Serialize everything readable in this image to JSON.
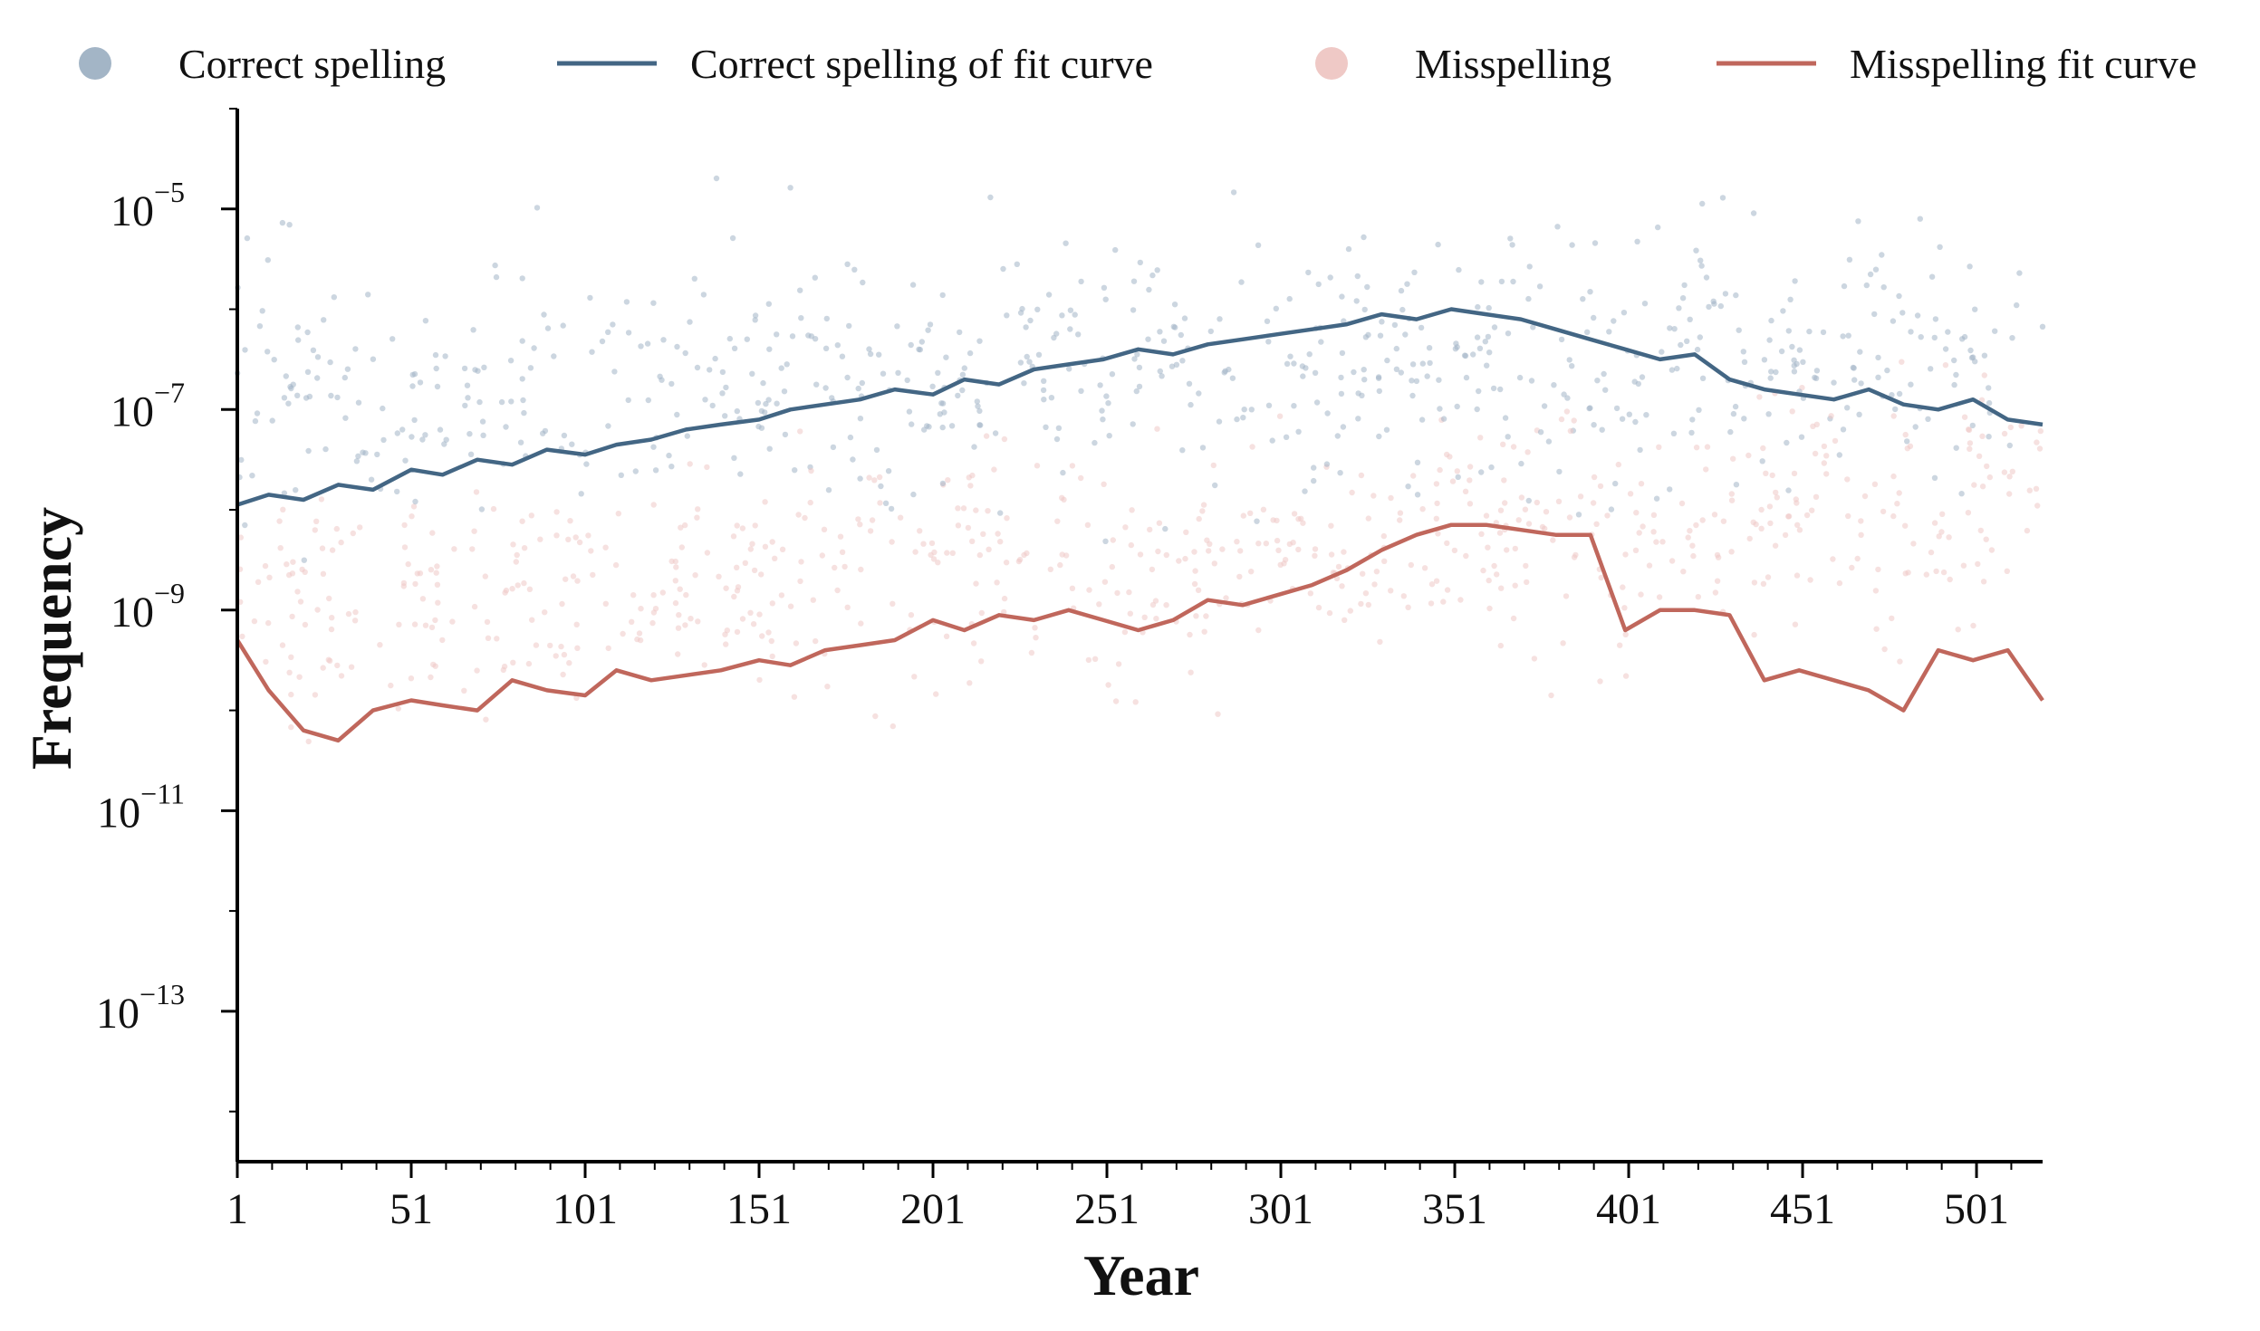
{
  "chart_data": {
    "type": "line",
    "xlabel": "Year",
    "ylabel": "Frequency",
    "xlim": [
      1,
      520
    ],
    "ylim_log10": [
      -14.5,
      -4.0
    ],
    "y_scale": "log",
    "grid": false,
    "legend_placement": "top",
    "x_ticks": [
      1,
      51,
      101,
      151,
      201,
      251,
      301,
      351,
      401,
      451,
      501
    ],
    "x_tick_labels": [
      "1",
      "51",
      "101",
      "151",
      "201",
      "251",
      "301",
      "351",
      "401",
      "451",
      "501"
    ],
    "y_ticks_log10": [
      -5,
      -7,
      -9,
      -11,
      -13
    ],
    "y_tick_labels": [
      {
        "base": "10",
        "exp": "−5"
      },
      {
        "base": "10",
        "exp": "−7"
      },
      {
        "base": "10",
        "exp": "−9"
      },
      {
        "base": "10",
        "exp": "−11"
      },
      {
        "base": "10",
        "exp": "−13"
      }
    ],
    "legend": [
      {
        "label": "Correct spelling",
        "kind": "marker",
        "color": "#a3b5c6"
      },
      {
        "label": "Correct spelling of fit curve",
        "kind": "line",
        "color": "#436684"
      },
      {
        "label": "Misspelling",
        "kind": "marker",
        "color": "#efc9c6"
      },
      {
        "label": "Misspelling fit curve",
        "kind": "line",
        "color": "#c0675c"
      }
    ],
    "series": [
      {
        "name": "Correct spelling of fit curve",
        "color": "#436684",
        "x": [
          1,
          10,
          20,
          30,
          40,
          51,
          60,
          70,
          80,
          90,
          101,
          110,
          120,
          130,
          140,
          151,
          160,
          170,
          180,
          190,
          201,
          210,
          220,
          230,
          240,
          250,
          260,
          270,
          280,
          290,
          300,
          310,
          320,
          330,
          340,
          350,
          360,
          370,
          380,
          390,
          400,
          410,
          420,
          430,
          440,
          450,
          460,
          470,
          480,
          490,
          500,
          510,
          520
        ],
        "y_log10": [
          -7.95,
          -7.85,
          -7.9,
          -7.75,
          -7.8,
          -7.6,
          -7.65,
          -7.5,
          -7.55,
          -7.4,
          -7.45,
          -7.35,
          -7.3,
          -7.2,
          -7.15,
          -7.1,
          -7.0,
          -6.95,
          -6.9,
          -6.8,
          -6.85,
          -6.7,
          -6.75,
          -6.6,
          -6.55,
          -6.5,
          -6.4,
          -6.45,
          -6.35,
          -6.3,
          -6.25,
          -6.2,
          -6.15,
          -6.05,
          -6.1,
          -6.0,
          -6.05,
          -6.1,
          -6.2,
          -6.3,
          -6.4,
          -6.5,
          -6.45,
          -6.7,
          -6.8,
          -6.85,
          -6.9,
          -6.8,
          -6.95,
          -7.0,
          -6.9,
          -7.1,
          -7.15
        ]
      },
      {
        "name": "Misspelling fit curve",
        "color": "#c0675c",
        "x": [
          1,
          10,
          20,
          30,
          40,
          51,
          60,
          70,
          80,
          90,
          101,
          110,
          120,
          130,
          140,
          151,
          160,
          170,
          180,
          190,
          201,
          210,
          220,
          230,
          240,
          250,
          260,
          270,
          280,
          290,
          300,
          310,
          320,
          330,
          340,
          350,
          360,
          370,
          380,
          390,
          400,
          410,
          420,
          430,
          440,
          450,
          460,
          470,
          480,
          490,
          500,
          510,
          520
        ],
        "y_log10": [
          -9.3,
          -9.8,
          -10.2,
          -10.3,
          -10.0,
          -9.9,
          -9.95,
          -10.0,
          -9.7,
          -9.8,
          -9.85,
          -9.6,
          -9.7,
          -9.65,
          -9.6,
          -9.5,
          -9.55,
          -9.4,
          -9.35,
          -9.3,
          -9.1,
          -9.2,
          -9.05,
          -9.1,
          -9.0,
          -9.1,
          -9.2,
          -9.1,
          -8.9,
          -8.95,
          -8.85,
          -8.75,
          -8.6,
          -8.4,
          -8.25,
          -8.15,
          -8.15,
          -8.2,
          -8.25,
          -8.25,
          -9.2,
          -9.0,
          -9.0,
          -9.05,
          -9.7,
          -9.6,
          -9.7,
          -9.8,
          -10.0,
          -9.4,
          -9.5,
          -9.4,
          -9.9
        ]
      }
    ]
  }
}
